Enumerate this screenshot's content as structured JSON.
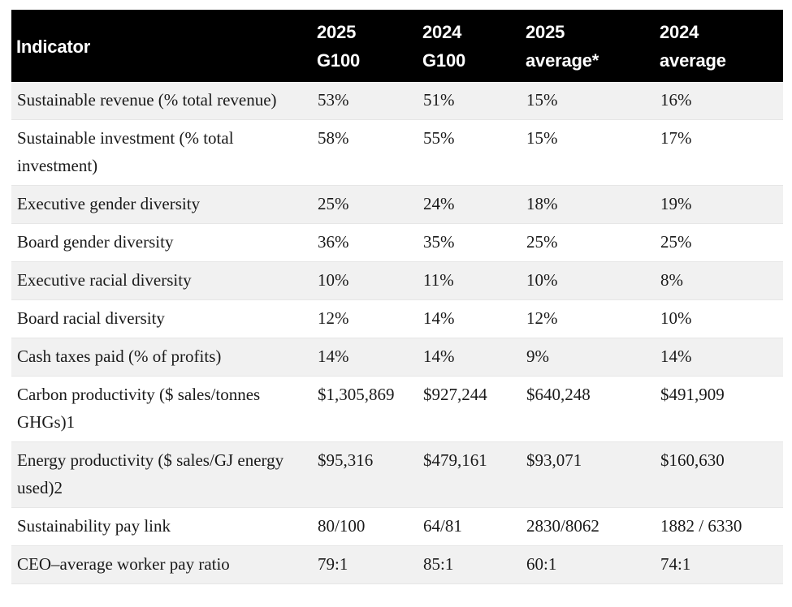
{
  "table": {
    "headers": [
      "Indicator",
      "2025 G100",
      "2024 G100",
      "2025 average*",
      "2024 average"
    ],
    "rows": [
      [
        "Sustainable revenue (% total revenue)",
        "53%",
        "51%",
        "15%",
        "16%"
      ],
      [
        "Sustainable investment (% total investment)",
        "58%",
        "55%",
        "15%",
        "17%"
      ],
      [
        "Executive gender diversity",
        "25%",
        "24%",
        "18%",
        "19%"
      ],
      [
        "Board gender diversity",
        "36%",
        "35%",
        "25%",
        "25%"
      ],
      [
        "Executive racial diversity",
        "10%",
        "11%",
        "10%",
        "8%"
      ],
      [
        "Board racial diversity",
        "12%",
        "14%",
        "12%",
        "10%"
      ],
      [
        "Cash taxes paid (% of profits)",
        "14%",
        "14%",
        "9%",
        "14%"
      ],
      [
        "Carbon productivity ($ sales/tonnes GHGs)1",
        "$1,305,869",
        "$927,244",
        "$640,248",
        "$491,909"
      ],
      [
        "Energy productivity ($ sales/GJ energy used)2",
        "$95,316",
        "$479,161",
        "$93,071",
        "$160,630"
      ],
      [
        "Sustainability pay link",
        "80/100",
        "64/81",
        "2830/8062",
        "1882 / 6330"
      ],
      [
        "CEO–average worker pay ratio",
        "79:1",
        "85:1",
        "60:1",
        "74:1"
      ]
    ]
  }
}
